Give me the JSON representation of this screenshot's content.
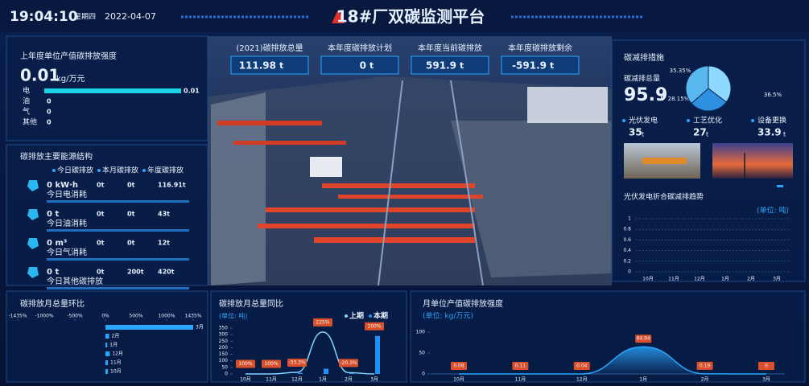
{
  "header": {
    "time": "19:04:10",
    "weekday": "星期四",
    "date": "2022-04-07",
    "title": "18#厂双碳监测平台"
  },
  "kpis": [
    {
      "label": "(2021)碳排放总量",
      "value": "111.98",
      "unit": "t"
    },
    {
      "label": "本年度碳排放计划",
      "value": "0",
      "unit": "t"
    },
    {
      "label": "本年度当前碳排放",
      "value": "591.9",
      "unit": "t"
    },
    {
      "label": "本年度碳排放剩余",
      "value": "-591.9",
      "unit": "t"
    }
  ],
  "intensity": {
    "title": "上年度单位产值碳排放强度",
    "value": "0.01",
    "unit": "kg/万元",
    "categories": [
      "电",
      "油",
      "气",
      "其他"
    ],
    "values": [
      0.01,
      0,
      0,
      0
    ],
    "color": "#19d3e6"
  },
  "energy": {
    "title": "碳排放主要能源结构",
    "legend": [
      "今日碳排放",
      "本月碳排放",
      "年度碳排放"
    ],
    "rows": [
      {
        "amount": "0 kW·h",
        "label": "今日电消耗",
        "values": [
          "0t",
          "0t",
          "116.91t"
        ]
      },
      {
        "amount": "0 t",
        "label": "今日油消耗",
        "values": [
          "0t",
          "0t",
          "43t"
        ]
      },
      {
        "amount": "0 m³",
        "label": "今日气消耗",
        "values": [
          "0t",
          "0t",
          "12t"
        ]
      },
      {
        "amount": "0 t",
        "label": "今日其他碳排放",
        "values": [
          "0t",
          "200t",
          "420t"
        ]
      }
    ]
  },
  "reduction": {
    "title": "碳减排措施",
    "total_label": "碳减排总量",
    "total": "95.9",
    "unit": "t",
    "pie": {
      "values": [
        35.35,
        28.15,
        36.5
      ],
      "value_labels": [
        "35.35%",
        "28.15%",
        "36.5%"
      ],
      "colors": [
        "#8fd8ff",
        "#2f8fe0",
        "#5ab8f0"
      ]
    },
    "measures": [
      {
        "label": "光伏发电",
        "value": "35",
        "unit": "t"
      },
      {
        "label": "工艺优化",
        "value": "27",
        "unit": "t"
      },
      {
        "label": "设备更换",
        "value": "33.9",
        "unit": "t"
      }
    ]
  },
  "solar_trend": {
    "title": "光伏发电折合碳减排趋势",
    "unit_label": "(单位: 吨)",
    "categories": [
      "10月",
      "11月",
      "12月",
      "1月",
      "2月",
      "3月"
    ],
    "ylim": [
      0,
      1
    ],
    "yticks": [
      0,
      0.2,
      0.4,
      0.6,
      0.8,
      1
    ]
  },
  "mom": {
    "title": "碳排放月总量环比",
    "categories": [
      "3月",
      "2月",
      "1月",
      "12月",
      "11月",
      "10月"
    ],
    "values": [
      1435,
      60,
      30,
      70,
      40,
      40
    ],
    "color": "#2aa6ff",
    "xlim": [
      -1435,
      1435
    ],
    "xticks": [
      {
        "value": -1435,
        "label": "-1435%"
      },
      {
        "value": -1000,
        "label": "-1000%"
      },
      {
        "value": -500,
        "label": "-500%"
      },
      {
        "value": 0,
        "label": "0%"
      },
      {
        "value": 500,
        "label": "500%"
      },
      {
        "value": 1000,
        "label": "1000%"
      },
      {
        "value": 1435,
        "label": "1435%"
      }
    ]
  },
  "yoy": {
    "title": "碳排放月总量同比",
    "unit_label": "(单位: 吨)",
    "categories": [
      "10月",
      "11月",
      "12月",
      "1月",
      "2月",
      "3月"
    ],
    "ylim": [
      0,
      350
    ],
    "yticks": [
      0,
      50,
      100,
      150,
      200,
      250,
      300,
      350
    ],
    "series": [
      {
        "name": "上期",
        "color": "#7fd3ff",
        "values": [
          0,
          0,
          12,
          320,
          10,
          0
        ]
      },
      {
        "name": "本期",
        "color": "#1e90ff",
        "values": [
          3,
          3,
          8,
          40,
          8,
          290
        ]
      }
    ],
    "growth": {
      "values": [
        100,
        100,
        -33.3,
        225,
        -20.3,
        100
      ],
      "value_labels": [
        "100%",
        "100%",
        "-33.3%",
        "225%",
        "-20.3%",
        "100%"
      ]
    }
  },
  "monthly_intensity": {
    "title": "月单位产值碳排放强度",
    "unit_label": "(单位: kg/万元)",
    "categories": [
      "10月",
      "11月",
      "12月",
      "1月",
      "2月",
      "3月"
    ],
    "values": [
      0.08,
      0.11,
      0.04,
      64.94,
      0.19,
      0
    ],
    "color": "#2aa6ff",
    "ylim": [
      0,
      100
    ],
    "yticks": [
      0,
      50,
      100
    ]
  }
}
